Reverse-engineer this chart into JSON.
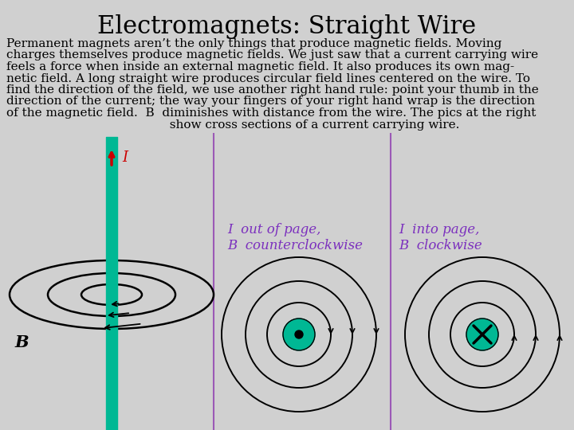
{
  "title": "Electromagnets: Straight Wire",
  "title_fontsize": 22,
  "body_text": "Permanent magnets aren’t the only things that produce magnetic fields. Moving\ncharges themselves produce magnetic fields. We just saw that a current carrying wire\nfeels a force when inside an external magnetic field. It also produces its own mag-\nnetic field. A long straight wire produces circular field lines centered on the wire. To\nfind the direction of the field, we use another right hand rule: point your thumb in the\ndirection of the current; the way your fingers of your right hand wrap is the direction\nof the magnetic field.  B  diminishes with distance from the wire. The pics at the right\n                                          show cross sections of a current carrying wire.",
  "body_fontsize": 11,
  "background_color": "#d0d0d0",
  "wire_color": "#00b894",
  "arrow_color": "#cc0000",
  "label_color_italic": "#7b2fbe",
  "panel2_label": "I  out of page,\nB  counterclockwise",
  "panel3_label": "I  into page,\nB  clockwise",
  "divider_color": "#9b59b6"
}
